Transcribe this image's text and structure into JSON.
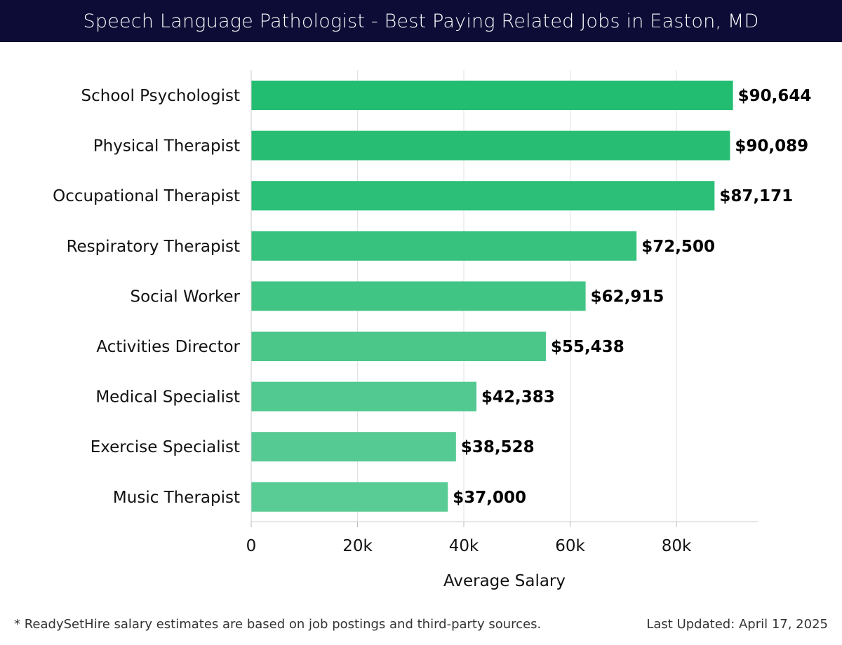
{
  "header": {
    "title": "Speech Language Pathologist - Best Paying Related Jobs in Easton, MD"
  },
  "chart_data": {
    "type": "bar",
    "orientation": "horizontal",
    "categories": [
      "School Psychologist",
      "Physical Therapist",
      "Occupational Therapist",
      "Respiratory Therapist",
      "Social Worker",
      "Activities Director",
      "Medical Specialist",
      "Exercise Specialist",
      "Music Therapist"
    ],
    "values": [
      90644,
      90089,
      87171,
      72500,
      62915,
      55438,
      42383,
      38528,
      37000
    ],
    "value_labels": [
      "$90,644",
      "$90,089",
      "$87,171",
      "$72,500",
      "$62,915",
      "$55,438",
      "$42,383",
      "$38,528",
      "$37,000"
    ],
    "xlabel": "Average Salary",
    "ylabel": "",
    "xlim": [
      0,
      95000
    ],
    "x_ticks": [
      0,
      20000,
      40000,
      60000,
      80000
    ],
    "x_tick_labels": [
      "0",
      "20k",
      "40k",
      "60k",
      "80k"
    ],
    "grid": "vertical",
    "bar_colors": [
      "#23bd72",
      "#27be74",
      "#2bbf77",
      "#37c27e",
      "#41c584",
      "#4bc78a",
      "#52c990",
      "#56ca93",
      "#59cb95"
    ]
  },
  "footer": {
    "note": "* ReadySetHire salary estimates are based on job postings and third-party sources.",
    "updated": "Last Updated: April 17, 2025"
  }
}
